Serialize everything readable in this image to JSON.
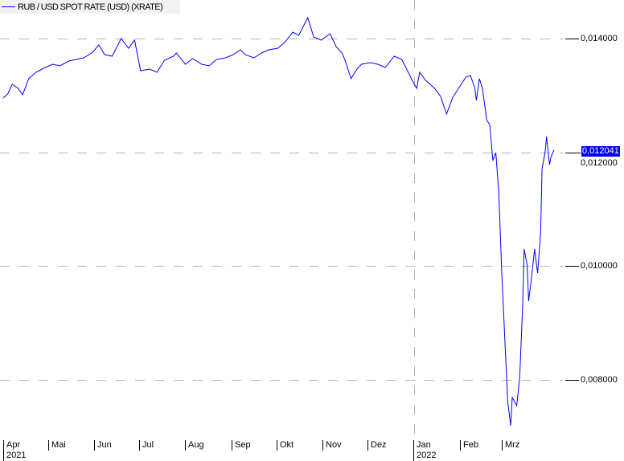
{
  "chart_data": {
    "type": "line",
    "title": "",
    "legend": {
      "label": "RUB / USD SPOT RATE (USD) (XRATE)",
      "placement": "top-left"
    },
    "color": "#0000ff",
    "last_value_label": "0,012041",
    "last_value": 0.012041,
    "ylim": [
      0.007,
      0.0148
    ],
    "y_ticks": [
      {
        "value": 0.014,
        "label": "0,014000"
      },
      {
        "value": 0.012,
        "label": "0,012000"
      },
      {
        "value": 0.01,
        "label": "0,010000"
      },
      {
        "value": 0.008,
        "label": "0,008000"
      }
    ],
    "x_ticks": [
      {
        "date": "2021-04-01",
        "label": "Apr",
        "year": "2021"
      },
      {
        "date": "2021-05-01",
        "label": "Mai"
      },
      {
        "date": "2021-06-01",
        "label": "Jun"
      },
      {
        "date": "2021-07-01",
        "label": "Jul"
      },
      {
        "date": "2021-08-01",
        "label": "Aug"
      },
      {
        "date": "2021-09-01",
        "label": "Sep"
      },
      {
        "date": "2021-10-01",
        "label": "Okt"
      },
      {
        "date": "2021-11-01",
        "label": "Nov"
      },
      {
        "date": "2021-12-01",
        "label": "Dez"
      },
      {
        "date": "2022-01-01",
        "label": "Jan",
        "year": "2022"
      },
      {
        "date": "2022-02-01",
        "label": "Feb"
      },
      {
        "date": "2022-03-01",
        "label": "Mrz"
      }
    ],
    "grid": "dashed horizontal at y ticks; dashed vertical at year boundary",
    "series": [
      {
        "x": [
          "2021-04-01",
          "2021-04-04",
          "2021-04-07",
          "2021-04-11",
          "2021-04-14",
          "2021-04-18",
          "2021-04-23",
          "2021-04-28",
          "2021-05-04",
          "2021-05-09",
          "2021-05-15",
          "2021-05-20",
          "2021-05-25",
          "2021-05-31",
          "2021-06-04",
          "2021-06-08",
          "2021-06-13",
          "2021-06-19",
          "2021-06-24",
          "2021-06-28",
          "2021-07-02",
          "2021-07-08",
          "2021-07-13",
          "2021-07-18",
          "2021-07-24",
          "2021-07-26",
          "2021-08-01",
          "2021-08-06",
          "2021-08-12",
          "2021-08-17",
          "2021-08-22",
          "2021-08-28",
          "2021-09-02",
          "2021-09-07",
          "2021-09-10",
          "2021-09-16",
          "2021-09-21",
          "2021-09-26",
          "2021-10-02",
          "2021-10-07",
          "2021-10-12",
          "2021-10-16",
          "2021-10-22",
          "2021-10-26",
          "2021-10-31",
          "2021-11-06",
          "2021-11-10",
          "2021-11-14",
          "2021-11-16",
          "2021-11-20",
          "2021-11-24",
          "2021-11-27",
          "2021-12-03",
          "2021-12-08",
          "2021-12-13",
          "2021-12-19",
          "2021-12-24",
          "2021-12-27",
          "2021-12-31",
          "2022-01-03",
          "2022-01-05",
          "2022-01-09",
          "2022-01-15",
          "2022-01-19",
          "2022-01-23",
          "2022-01-27",
          "2022-01-31",
          "2022-02-05",
          "2022-02-08",
          "2022-02-11",
          "2022-02-12",
          "2022-02-14",
          "2022-02-16",
          "2022-02-19",
          "2022-02-21",
          "2022-02-23",
          "2022-02-25",
          "2022-02-27",
          "2022-03-01",
          "2022-03-03",
          "2022-03-05",
          "2022-03-07",
          "2022-03-08",
          "2022-03-11",
          "2022-03-13",
          "2022-03-15",
          "2022-03-16",
          "2022-03-18",
          "2022-03-19",
          "2022-03-21",
          "2022-03-23",
          "2022-03-25",
          "2022-03-27",
          "2022-03-28",
          "2022-03-30",
          "2022-03-31",
          "2022-04-02",
          "2022-04-03",
          "2022-04-05"
        ],
        "y": [
          0.012954,
          0.013025,
          0.013194,
          0.013124,
          0.013011,
          0.013293,
          0.013406,
          0.013477,
          0.013548,
          0.013519,
          0.013604,
          0.013633,
          0.013661,
          0.01376,
          0.013887,
          0.013717,
          0.013689,
          0.014,
          0.01383,
          0.013972,
          0.013435,
          0.013463,
          0.013406,
          0.013618,
          0.013689,
          0.013746,
          0.013548,
          0.013647,
          0.013548,
          0.013519,
          0.013633,
          0.013661,
          0.013717,
          0.013802,
          0.013717,
          0.013661,
          0.013746,
          0.013802,
          0.01383,
          0.013943,
          0.014113,
          0.014057,
          0.014367,
          0.014028,
          0.013972,
          0.014085,
          0.013859,
          0.013746,
          0.013618,
          0.013293,
          0.013463,
          0.013548,
          0.013576,
          0.013548,
          0.013491,
          0.013689,
          0.013633,
          0.013477,
          0.013265,
          0.013124,
          0.013406,
          0.013265,
          0.013124,
          0.012982,
          0.012671,
          0.012954,
          0.013124,
          0.013322,
          0.01335,
          0.013124,
          0.012912,
          0.013293,
          0.013124,
          0.012558,
          0.012488,
          0.011852,
          0.011993,
          0.011286,
          0.009873,
          0.008742,
          0.007611,
          0.007187,
          0.007682,
          0.007541,
          0.008035,
          0.009308,
          0.010297,
          0.010014,
          0.009378,
          0.009802,
          0.010297,
          0.009873,
          0.01058,
          0.01171,
          0.011993,
          0.012276,
          0.011781,
          0.011922,
          0.012041
        ]
      }
    ]
  }
}
